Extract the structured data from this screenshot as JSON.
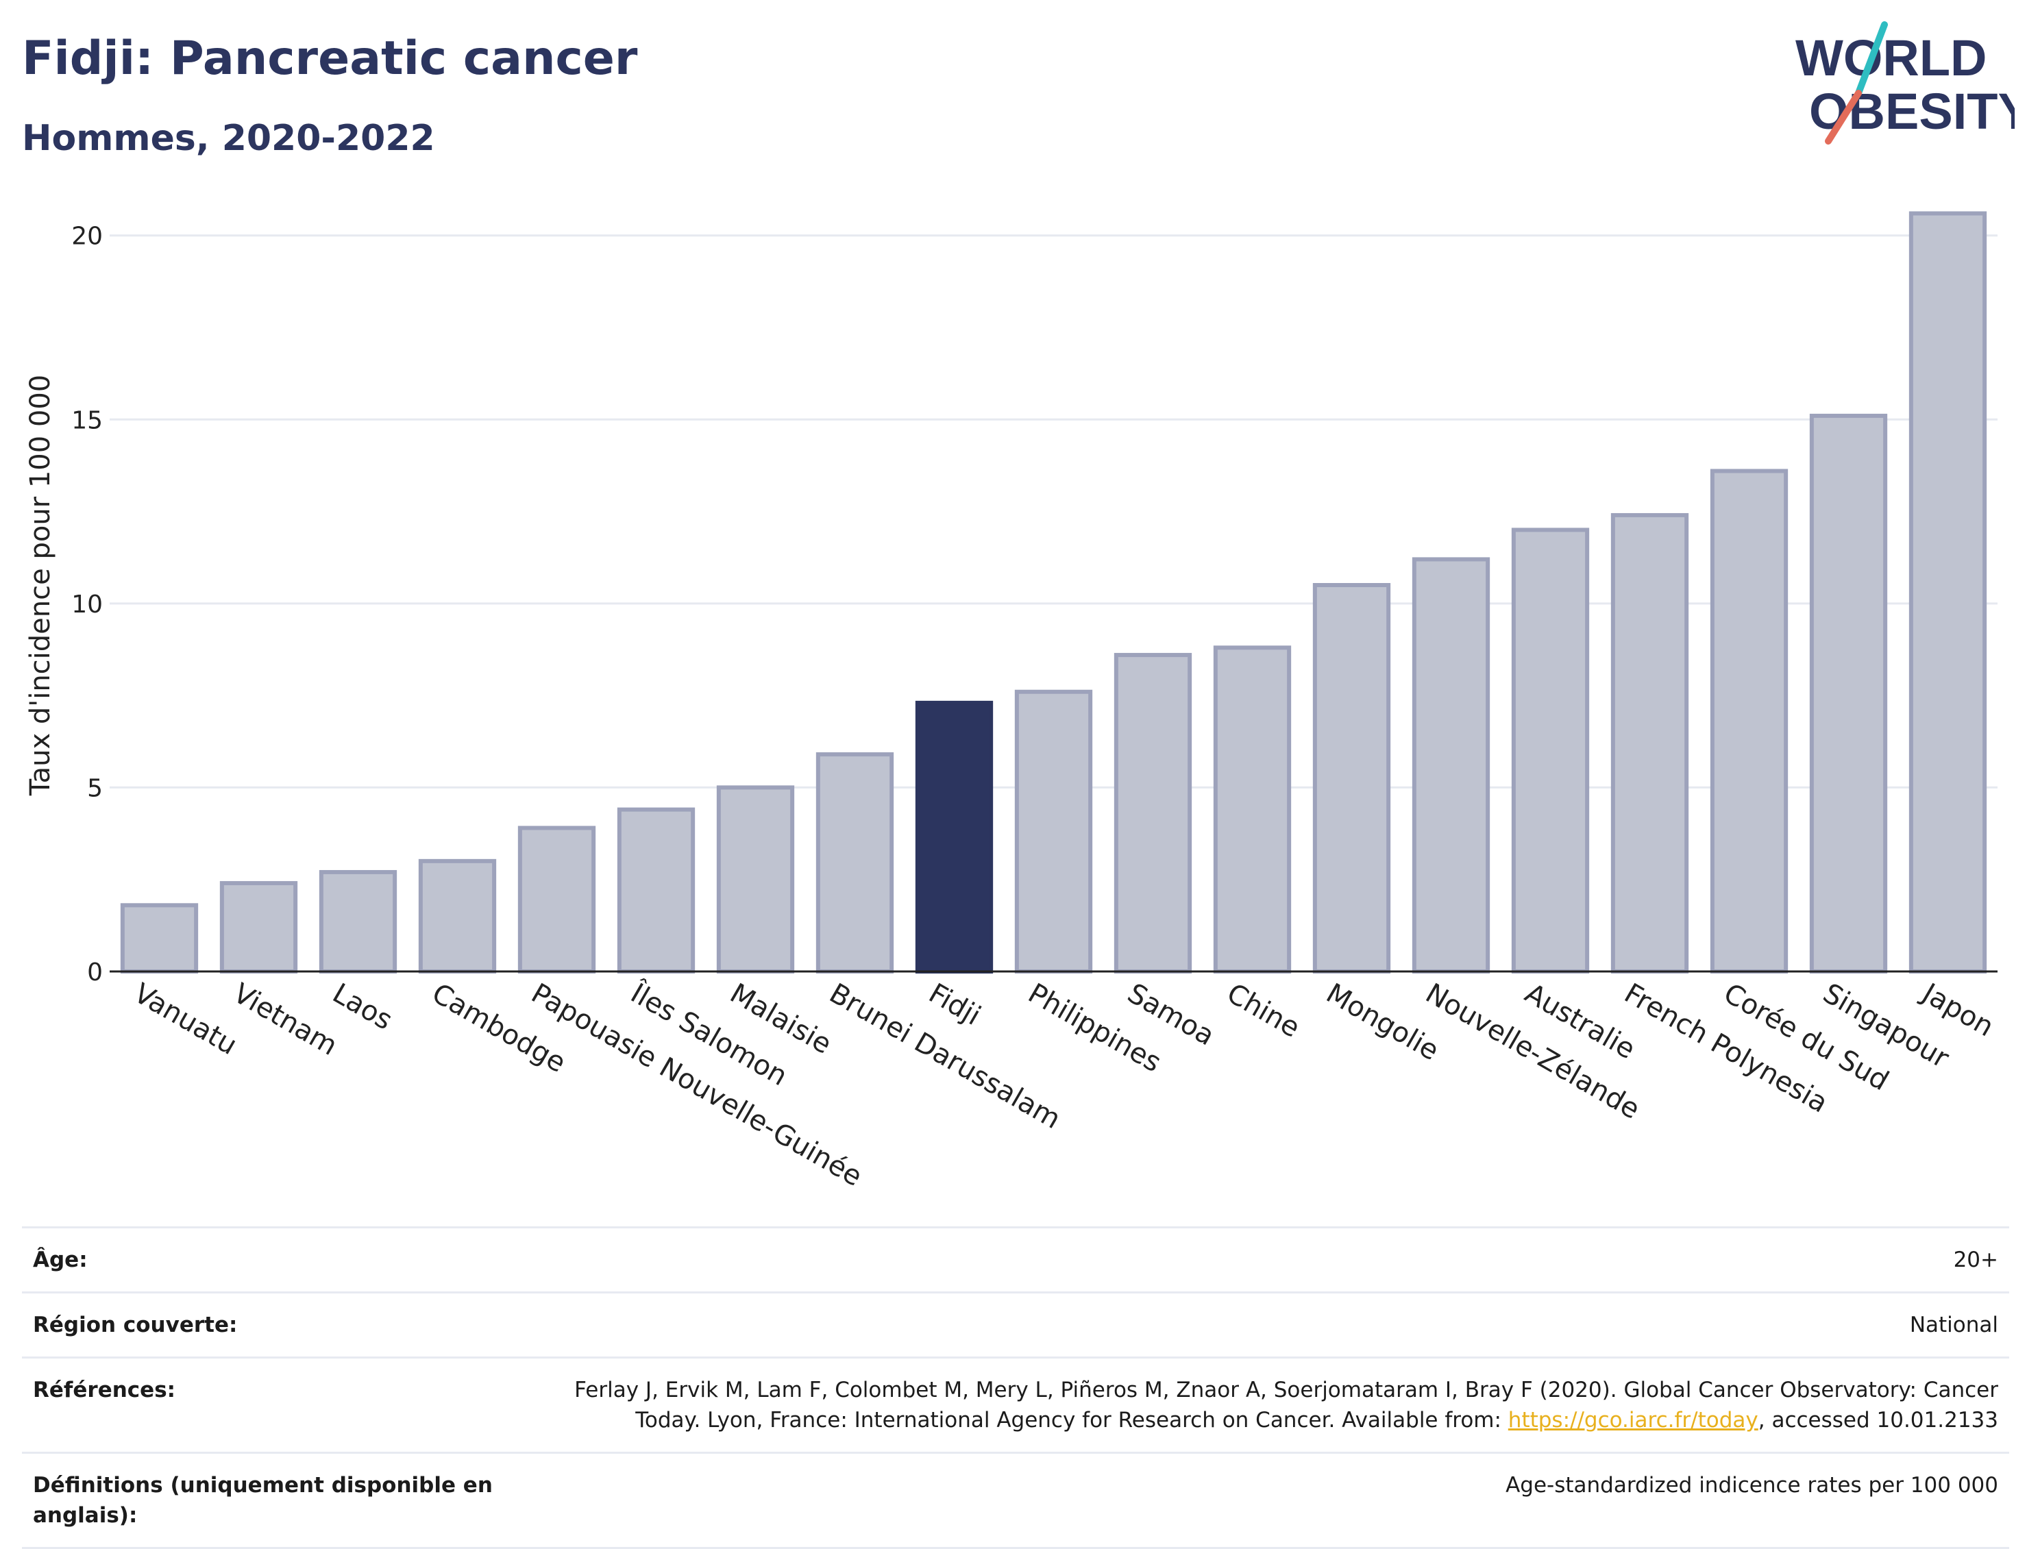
{
  "header": {
    "title": "Fidji: Pancreatic cancer",
    "subtitle": "Hommes, 2020-2022"
  },
  "logo": {
    "line1": "WORLD",
    "line2": "OBESITY"
  },
  "colors": {
    "highlight": "#2c355f",
    "bar_fill": "#bfc3d0",
    "bar_stroke": "#9da2bb",
    "grid": "#e6e9f0",
    "logo_teal": "#2ebdc1",
    "logo_coral": "#e36c5a"
  },
  "chart_data": {
    "type": "bar",
    "title": "Fidji: Pancreatic cancer",
    "subtitle": "Hommes, 2020-2022",
    "xlabel": "",
    "ylabel": "Taux d'incidence pour 100 000",
    "ylim": [
      0,
      21
    ],
    "yticks": [
      0,
      5,
      10,
      15,
      20
    ],
    "grid": true,
    "highlight": "Fidji",
    "categories": [
      "Vanuatu",
      "Vietnam",
      "Laos",
      "Cambodge",
      "Papouasie Nouvelle-Guinée",
      "Îles Salomon",
      "Malaisie",
      "Brunei Darussalam",
      "Fidji",
      "Philippines",
      "Samoa",
      "Chine",
      "Mongolie",
      "Nouvelle-Zélande",
      "Australie",
      "French Polynesia",
      "Corée du Sud",
      "Singapour",
      "Japon"
    ],
    "values": [
      1.8,
      2.4,
      2.7,
      3.0,
      3.9,
      4.4,
      5.0,
      5.9,
      7.3,
      7.6,
      8.6,
      8.8,
      10.5,
      11.2,
      12.0,
      12.4,
      13.6,
      15.1,
      20.6
    ]
  },
  "info": [
    {
      "label": "Âge:",
      "value": "20+"
    },
    {
      "label": "Région couverte:",
      "value": "National"
    },
    {
      "label": "Références:",
      "value_before": "Ferlay J, Ervik M, Lam F, Colombet M, Mery L, Piñeros M, Znaor A, Soerjomataram I, Bray F (2020). Global Cancer Observatory: Cancer Today. Lyon, France: International Agency for Research on Cancer. Available from: ",
      "link": "https://gco.iarc.fr/today",
      "value_after": ", accessed 10.01.2133"
    },
    {
      "label": "Définitions (uniquement disponible en anglais):",
      "value": "Age-standardized indicence rates per 100 000"
    }
  ]
}
